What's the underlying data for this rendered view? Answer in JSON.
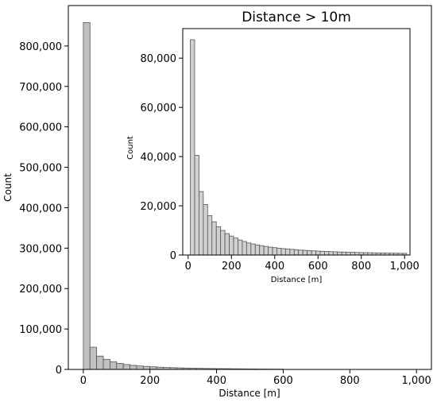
{
  "chart_data": [
    {
      "type": "bar",
      "title": "",
      "xlabel": "Distance [m]",
      "ylabel": "Count",
      "xlim": [
        -45,
        1045
      ],
      "ylim": [
        0,
        900000
      ],
      "xticks": [
        0,
        200,
        400,
        600,
        800,
        1000
      ],
      "xtick_labels": [
        "0",
        "200",
        "400",
        "600",
        "800",
        "1,000"
      ],
      "yticks": [
        0,
        100000,
        200000,
        300000,
        400000,
        500000,
        600000,
        700000,
        800000
      ],
      "ytick_labels": [
        "0",
        "100,000",
        "200,000",
        "300,000",
        "400,000",
        "500,000",
        "600,000",
        "700,000",
        "800,000"
      ],
      "bin_width": 20,
      "bin_starts": [
        0,
        20,
        40,
        60,
        80,
        100,
        120,
        140,
        160,
        180,
        200,
        220,
        240,
        260,
        280,
        300,
        320,
        340,
        360,
        380,
        400,
        420,
        440,
        460,
        480,
        500,
        520,
        540,
        560,
        580
      ],
      "values": [
        858000,
        55000,
        33000,
        25000,
        19000,
        15000,
        12000,
        10000,
        8500,
        7500,
        6500,
        5500,
        4800,
        4300,
        3800,
        3400,
        3000,
        2700,
        2400,
        2200,
        2000,
        1800,
        1600,
        1450,
        1300,
        1150,
        1000,
        900,
        800,
        700
      ],
      "grid": false,
      "color": "#c0c0c0"
    },
    {
      "type": "bar",
      "title": "Distance > 10m",
      "xlabel": "Distance [m]",
      "ylabel": "Count",
      "xlim": [
        -25,
        1025
      ],
      "ylim": [
        0,
        92000
      ],
      "xticks": [
        0,
        200,
        400,
        600,
        800,
        1000
      ],
      "xtick_labels": [
        "0",
        "200",
        "400",
        "600",
        "800",
        "1,000"
      ],
      "yticks": [
        0,
        20000,
        40000,
        60000,
        80000
      ],
      "ytick_labels": [
        "0",
        "20,000",
        "40,000",
        "60,000",
        "80,000"
      ],
      "bin_width": 20,
      "bin_starts": [
        10,
        30,
        50,
        70,
        90,
        110,
        130,
        150,
        170,
        190,
        210,
        230,
        250,
        270,
        290,
        310,
        330,
        350,
        370,
        390,
        410,
        430,
        450,
        470,
        490,
        510,
        530,
        550,
        570,
        590,
        610,
        630,
        650,
        670,
        690,
        710,
        730,
        750,
        770,
        790,
        810,
        830,
        850,
        870,
        890,
        910,
        930,
        950,
        970,
        990
      ],
      "values": [
        87500,
        40500,
        25800,
        20500,
        16000,
        13500,
        11500,
        10000,
        8700,
        7700,
        6900,
        6100,
        5500,
        4900,
        4500,
        4100,
        3800,
        3500,
        3200,
        3000,
        2800,
        2600,
        2450,
        2300,
        2150,
        2000,
        1900,
        1800,
        1700,
        1600,
        1520,
        1450,
        1380,
        1300,
        1250,
        1200,
        1150,
        1100,
        1050,
        1000,
        960,
        920,
        880,
        850,
        820,
        790,
        760,
        730,
        700,
        680
      ],
      "grid": false,
      "color": "#d0d0d0"
    }
  ]
}
